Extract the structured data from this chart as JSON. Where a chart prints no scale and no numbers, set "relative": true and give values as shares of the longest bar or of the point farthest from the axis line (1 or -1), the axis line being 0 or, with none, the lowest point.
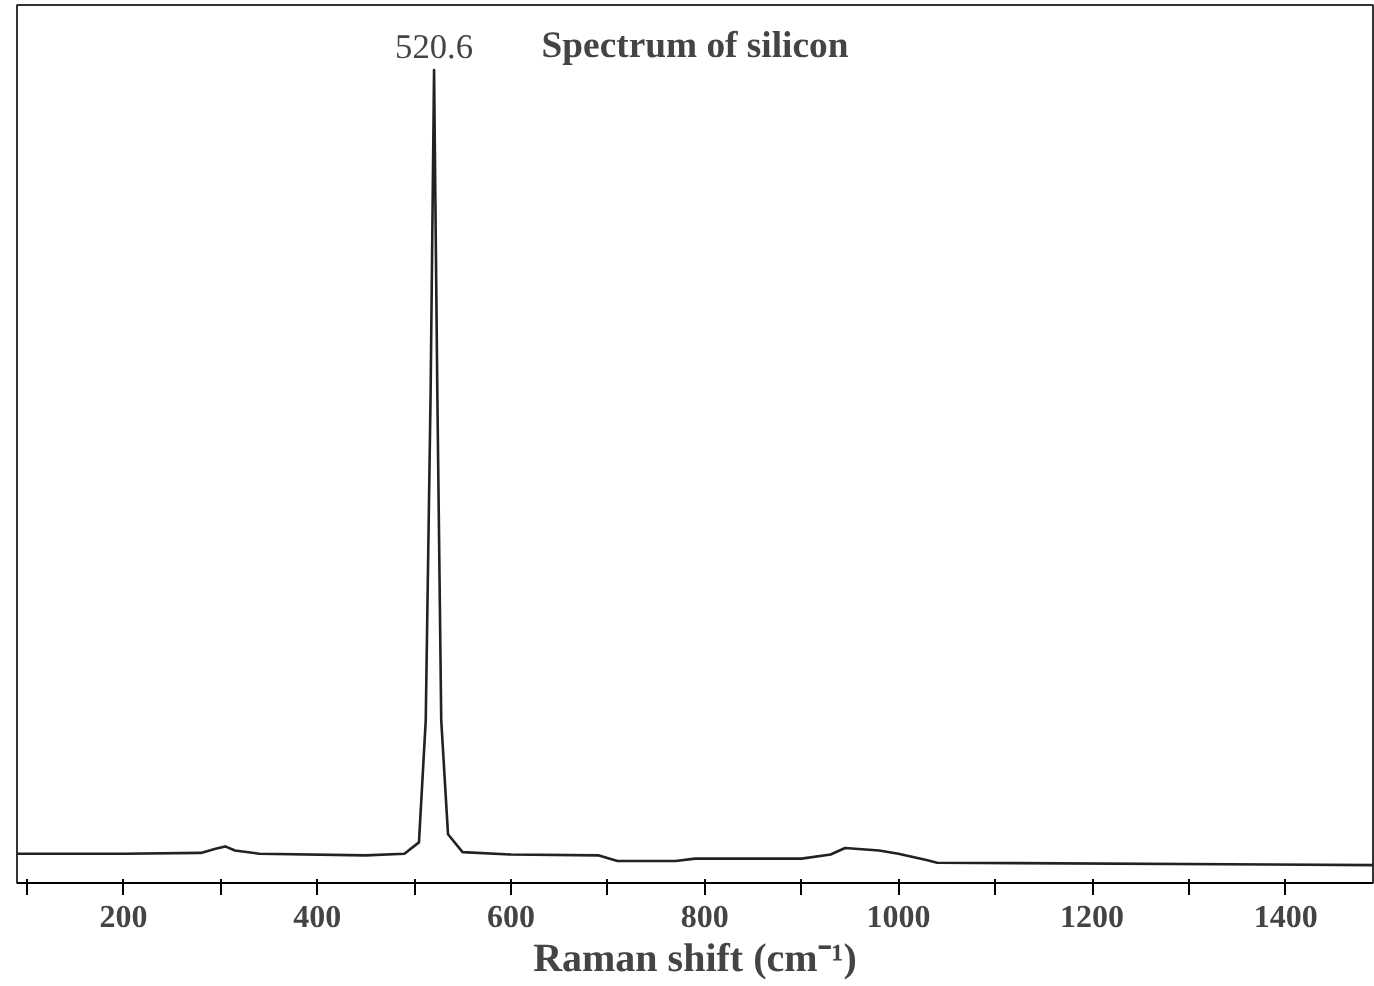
{
  "chart_data": {
    "type": "line",
    "title": "Spectrum of silicon",
    "xlabel": "Raman shift (cm⁻¹)",
    "relative": true,
    "tick_labels": "x",
    "grid": false,
    "marker": "none",
    "line_style": "solid",
    "xlim": [
      90,
      1490
    ],
    "xticks": [
      {
        "value": 100,
        "label": null
      },
      200,
      {
        "value": 300,
        "label": null
      },
      400,
      {
        "value": 500,
        "label": null
      },
      600,
      {
        "value": 700,
        "label": null
      },
      800,
      {
        "value": 900,
        "label": null
      },
      1000,
      {
        "value": 1100,
        "label": null
      },
      1200,
      {
        "value": 1300,
        "label": null
      },
      1400
    ],
    "x": [
      90,
      200,
      280,
      295,
      305,
      315,
      340,
      450,
      490,
      505,
      512,
      517,
      520.6,
      524,
      528,
      535,
      550,
      600,
      690,
      710,
      770,
      790,
      900,
      930,
      945,
      980,
      1000,
      1030,
      1040,
      1490
    ],
    "series": [
      {
        "color": "#222222",
        "values": [
          0.036,
          0.036,
          0.037,
          0.042,
          0.045,
          0.04,
          0.036,
          0.034,
          0.036,
          0.05,
          0.2,
          0.6,
          1.0,
          0.6,
          0.2,
          0.06,
          0.038,
          0.035,
          0.034,
          0.027,
          0.027,
          0.03,
          0.03,
          0.035,
          0.043,
          0.04,
          0.036,
          0.028,
          0.025,
          0.022
        ]
      }
    ],
    "annotations": [
      {
        "text": "520.6",
        "x": 520.6,
        "y": 1.0
      }
    ]
  }
}
